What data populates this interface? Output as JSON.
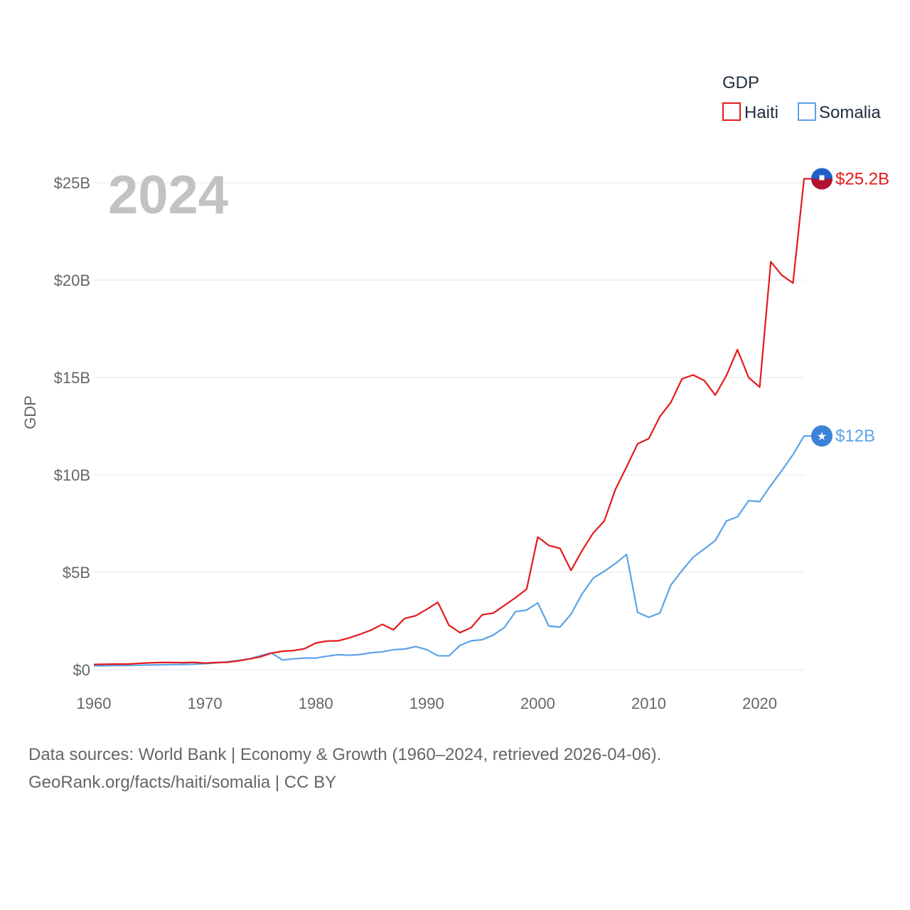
{
  "chart_data": {
    "type": "line",
    "title": "",
    "ylabel": "GDP",
    "xlabel": "",
    "year_display": "2024",
    "legend": {
      "title": "GDP",
      "position": "top-right"
    },
    "xlim": [
      1960,
      2024
    ],
    "ylim": [
      0,
      25000000000
    ],
    "x_ticks": [
      1960,
      1970,
      1980,
      1990,
      2000,
      2010,
      2020
    ],
    "y_ticks": [
      {
        "value": 0,
        "label": "$0"
      },
      {
        "value": 5000000000,
        "label": "$5B"
      },
      {
        "value": 10000000000,
        "label": "$10B"
      },
      {
        "value": 15000000000,
        "label": "$15B"
      },
      {
        "value": 20000000000,
        "label": "$20B"
      },
      {
        "value": 25000000000,
        "label": "$25B"
      }
    ],
    "x": [
      1960,
      1961,
      1962,
      1963,
      1964,
      1965,
      1966,
      1967,
      1968,
      1969,
      1970,
      1971,
      1972,
      1973,
      1974,
      1975,
      1976,
      1977,
      1978,
      1979,
      1980,
      1981,
      1982,
      1983,
      1984,
      1985,
      1986,
      1987,
      1988,
      1989,
      1990,
      1991,
      1992,
      1993,
      1994,
      1995,
      1996,
      1997,
      1998,
      1999,
      2000,
      2001,
      2002,
      2003,
      2004,
      2005,
      2006,
      2007,
      2008,
      2009,
      2010,
      2011,
      2012,
      2013,
      2014,
      2015,
      2016,
      2017,
      2018,
      2019,
      2020,
      2021,
      2022,
      2023,
      2024
    ],
    "series": [
      {
        "name": "Haiti",
        "color": "#e31a1c",
        "end_label": "$25.2B",
        "values": [
          0.27,
          0.28,
          0.29,
          0.29,
          0.32,
          0.35,
          0.37,
          0.37,
          0.36,
          0.38,
          0.34,
          0.37,
          0.38,
          0.45,
          0.55,
          0.66,
          0.85,
          0.95,
          0.98,
          1.08,
          1.37,
          1.47,
          1.48,
          1.63,
          1.82,
          2.04,
          2.33,
          2.05,
          2.63,
          2.77,
          3.1,
          3.46,
          2.28,
          1.9,
          2.16,
          2.82,
          2.91,
          3.3,
          3.7,
          4.14,
          6.81,
          6.38,
          6.23,
          5.1,
          6.12,
          7.02,
          7.64,
          9.25,
          10.41,
          11.6,
          11.86,
          12.99,
          13.73,
          14.93,
          15.13,
          14.85,
          14.1,
          15.1,
          16.43,
          15.0,
          14.51,
          20.94,
          20.25,
          19.85,
          25.2
        ]
      },
      {
        "name": "Somalia",
        "color": "#5ba3e8",
        "end_label": "$12B",
        "values": [
          0.2,
          0.2,
          0.22,
          0.22,
          0.23,
          0.24,
          0.25,
          0.26,
          0.27,
          0.28,
          0.31,
          0.35,
          0.4,
          0.47,
          0.55,
          0.72,
          0.86,
          0.5,
          0.56,
          0.6,
          0.6,
          0.69,
          0.77,
          0.74,
          0.78,
          0.87,
          0.92,
          1.03,
          1.06,
          1.19,
          1.03,
          0.72,
          0.71,
          1.25,
          1.48,
          1.54,
          1.78,
          2.17,
          2.98,
          3.06,
          3.43,
          2.24,
          2.19,
          2.85,
          3.89,
          4.7,
          5.05,
          5.45,
          5.92,
          2.94,
          2.69,
          2.91,
          4.35,
          5.09,
          5.77,
          6.19,
          6.63,
          7.63,
          7.85,
          8.67,
          8.63,
          9.46,
          10.23,
          11.04,
          12.0
        ]
      }
    ]
  },
  "footer": {
    "line1": "Data sources: World Bank | Economy & Growth (1960–2024, retrieved 2026-04-06).",
    "line2": "GeoRank.org/facts/haiti/somalia | CC BY"
  }
}
